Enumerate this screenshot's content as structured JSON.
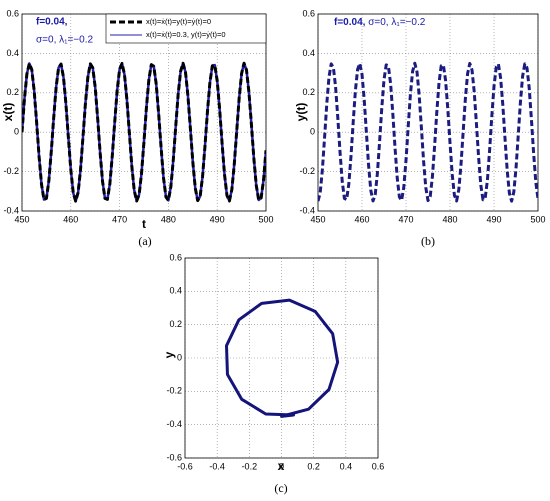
{
  "chart_data": [
    {
      "type": "line",
      "caption": "(a)",
      "xlabel": "t",
      "ylabel": "x(t)",
      "annotations": [
        "f=0.04,",
        "σ=0, λ₁=−0.2"
      ],
      "xlim": [
        450,
        500
      ],
      "xticks": [
        450,
        460,
        470,
        480,
        490,
        500
      ],
      "ylim": [
        -0.4,
        0.6
      ],
      "yticks": [
        -0.4,
        -0.2,
        0,
        0.2,
        0.4,
        0.6
      ],
      "grid": true,
      "legend": "upper right",
      "x": [
        450,
        450.5,
        451,
        451.5,
        452,
        452.5,
        453,
        453.5,
        454,
        454.5,
        455,
        455.5,
        456,
        456.5,
        457,
        457.5,
        458,
        458.5,
        459,
        459.5,
        460,
        460.5,
        461,
        461.5,
        462,
        462.5,
        463,
        463.5,
        464,
        464.5,
        465,
        465.5,
        466,
        466.5,
        467,
        467.5,
        468,
        468.5,
        469,
        469.5,
        470,
        470.5,
        471,
        471.5,
        472,
        472.5,
        473,
        473.5,
        474,
        474.5,
        475,
        475.5,
        476,
        476.5,
        477,
        477.5,
        478,
        478.5,
        479,
        479.5,
        480,
        480.5,
        481,
        481.5,
        482,
        482.5,
        483,
        483.5,
        484,
        484.5,
        485,
        485.5,
        486,
        486.5,
        487,
        487.5,
        488,
        488.5,
        489,
        489.5,
        490,
        490.5,
        491,
        491.5,
        492,
        492.5,
        493,
        493.5,
        494,
        494.5,
        495,
        495.5,
        496,
        496.5,
        497,
        497.5,
        498,
        498.5,
        499,
        499.5,
        500
      ],
      "series": [
        {
          "name": "x(t)=ẋ(t)=y(t)=ẏ(t)=0",
          "color": "#000000",
          "line_style": "dashed",
          "line_width": 3,
          "values": [
            0,
            0.168,
            0.295,
            0.349,
            0.318,
            0.209,
            0.049,
            -0.123,
            -0.265,
            -0.342,
            -0.336,
            -0.247,
            -0.098,
            0.075,
            0.23,
            0.328,
            0.346,
            0.279,
            0.144,
            -0.026,
            -0.19,
            -0.308,
            -0.35,
            -0.306,
            -0.188,
            -0.023,
            0.147,
            0.281,
            0.347,
            0.327,
            0.228,
            0.072,
            -0.101,
            -0.249,
            -0.336,
            -0.341,
            -0.263,
            -0.12,
            0.052,
            0.212,
            0.32,
            0.349,
            0.293,
            0.164,
            -0.003,
            -0.171,
            -0.296,
            -0.349,
            -0.317,
            -0.207,
            -0.046,
            0.126,
            0.267,
            0.343,
            0.335,
            0.245,
            0.095,
            -0.078,
            -0.232,
            -0.329,
            -0.346,
            -0.277,
            -0.141,
            0.029,
            0.193,
            0.309,
            0.35,
            0.305,
            0.185,
            0.02,
            -0.15,
            -0.283,
            -0.347,
            -0.326,
            -0.225,
            -0.069,
            0.104,
            0.251,
            0.337,
            0.341,
            0.261,
            0.117,
            -0.056,
            -0.215,
            -0.321,
            -0.349,
            -0.291,
            -0.162,
            0.006,
            0.173,
            0.298,
            0.35,
            0.316,
            0.204,
            0.043,
            -0.129,
            -0.269,
            -0.344,
            -0.334,
            -0.242,
            -0.092
          ]
        },
        {
          "name": "x(t)=ẋ(t)=0.3, y(t)=ẏ(t)=0",
          "color": "#2020b0",
          "line_style": "solid",
          "line_width": 2.5,
          "values": [
            0,
            0.168,
            0.295,
            0.349,
            0.318,
            0.209,
            0.049,
            -0.123,
            -0.265,
            -0.342,
            -0.336,
            -0.247,
            -0.098,
            0.075,
            0.23,
            0.328,
            0.346,
            0.279,
            0.144,
            -0.026,
            -0.19,
            -0.308,
            -0.35,
            -0.306,
            -0.188,
            -0.023,
            0.147,
            0.281,
            0.347,
            0.327,
            0.228,
            0.072,
            -0.101,
            -0.249,
            -0.336,
            -0.341,
            -0.263,
            -0.12,
            0.052,
            0.212,
            0.32,
            0.349,
            0.293,
            0.164,
            -0.003,
            -0.171,
            -0.296,
            -0.349,
            -0.317,
            -0.207,
            -0.046,
            0.126,
            0.267,
            0.343,
            0.335,
            0.245,
            0.095,
            -0.078,
            -0.232,
            -0.329,
            -0.346,
            -0.277,
            -0.141,
            0.029,
            0.193,
            0.309,
            0.35,
            0.305,
            0.185,
            0.02,
            -0.15,
            -0.283,
            -0.347,
            -0.326,
            -0.225,
            -0.069,
            0.104,
            0.251,
            0.337,
            0.341,
            0.261,
            0.117,
            -0.056,
            -0.215,
            -0.321,
            -0.349,
            -0.291,
            -0.162,
            0.006,
            0.173,
            0.298,
            0.35,
            0.316,
            0.204,
            0.043,
            -0.129,
            -0.269,
            -0.344,
            -0.334,
            -0.242,
            -0.092
          ]
        }
      ]
    },
    {
      "type": "line",
      "caption": "(b)",
      "ylabel": "y(t)",
      "annotations": [
        "f=0.04,",
        "σ=0, λ₁=−0.2"
      ],
      "xlim": [
        450,
        500
      ],
      "xticks": [
        450,
        460,
        470,
        480,
        490,
        500
      ],
      "ylim": [
        -0.4,
        0.6
      ],
      "yticks": [
        -0.4,
        -0.2,
        0,
        0.2,
        0.4,
        0.6
      ],
      "grid": true,
      "x": [
        450,
        450.5,
        451,
        451.5,
        452,
        452.5,
        453,
        453.5,
        454,
        454.5,
        455,
        455.5,
        456,
        456.5,
        457,
        457.5,
        458,
        458.5,
        459,
        459.5,
        460,
        460.5,
        461,
        461.5,
        462,
        462.5,
        463,
        463.5,
        464,
        464.5,
        465,
        465.5,
        466,
        466.5,
        467,
        467.5,
        468,
        468.5,
        469,
        469.5,
        470,
        470.5,
        471,
        471.5,
        472,
        472.5,
        473,
        473.5,
        474,
        474.5,
        475,
        475.5,
        476,
        476.5,
        477,
        477.5,
        478,
        478.5,
        479,
        479.5,
        480,
        480.5,
        481,
        481.5,
        482,
        482.5,
        483,
        483.5,
        484,
        484.5,
        485,
        485.5,
        486,
        486.5,
        487,
        487.5,
        488,
        488.5,
        489,
        489.5,
        490,
        490.5,
        491,
        491.5,
        492,
        492.5,
        493,
        493.5,
        494,
        494.5,
        495,
        495.5,
        496,
        496.5,
        497,
        497.5,
        498,
        498.5,
        499,
        499.5,
        500
      ],
      "series": [
        {
          "color": "#1c1c80",
          "line_style": "dashed",
          "line_width": 3,
          "values": [
            -0.35,
            -0.307,
            -0.189,
            -0.025,
            0.146,
            0.28,
            0.347,
            0.328,
            0.229,
            0.074,
            -0.099,
            -0.248,
            -0.336,
            -0.342,
            -0.264,
            -0.121,
            0.051,
            0.211,
            0.319,
            0.349,
            0.294,
            0.166,
            -0.002,
            -0.169,
            -0.295,
            -0.349,
            -0.318,
            -0.208,
            -0.048,
            0.124,
            0.266,
            0.342,
            0.335,
            0.246,
            0.096,
            -0.077,
            -0.231,
            -0.329,
            -0.346,
            -0.279,
            -0.143,
            0.028,
            0.192,
            0.309,
            0.35,
            0.306,
            0.186,
            0.022,
            -0.148,
            -0.282,
            -0.347,
            -0.327,
            -0.226,
            -0.071,
            0.102,
            0.25,
            0.337,
            0.341,
            0.262,
            0.118,
            -0.054,
            -0.213,
            -0.32,
            -0.349,
            -0.292,
            -0.164,
            0.005,
            0.172,
            0.297,
            0.349,
            0.316,
            0.206,
            0.045,
            -0.127,
            -0.268,
            -0.343,
            -0.334,
            -0.244,
            -0.093,
            0.08,
            0.233,
            0.33,
            0.346,
            0.276,
            0.14,
            -0.031,
            -0.194,
            -0.31,
            -0.35,
            -0.304,
            -0.184,
            -0.019,
            0.151,
            0.284,
            0.347,
            0.326,
            0.224,
            0.067,
            -0.105,
            -0.253,
            -0.338
          ]
        }
      ]
    },
    {
      "type": "line",
      "caption": "(c)",
      "xlabel": "x",
      "ylabel": "y",
      "xlim": [
        -0.6,
        0.6
      ],
      "xticks": [
        -0.6,
        -0.4,
        -0.2,
        0,
        0.2,
        0.4,
        0.6
      ],
      "ylim": [
        -0.6,
        0.6
      ],
      "yticks": [
        -0.6,
        -0.4,
        -0.2,
        0,
        0.2,
        0.4,
        0.6
      ],
      "grid": true,
      "x": [
        0,
        0.168,
        0.295,
        0.349,
        0.318,
        0.209,
        0.049,
        -0.123,
        -0.265,
        -0.342,
        -0.336,
        -0.247,
        -0.098,
        0.075
      ],
      "series": [
        {
          "color": "#14147a",
          "line_style": "solid",
          "line_width": 3,
          "values": [
            -0.35,
            -0.307,
            -0.189,
            -0.025,
            0.146,
            0.28,
            0.347,
            0.328,
            0.229,
            0.074,
            -0.099,
            -0.248,
            -0.336,
            -0.342
          ]
        }
      ]
    }
  ]
}
